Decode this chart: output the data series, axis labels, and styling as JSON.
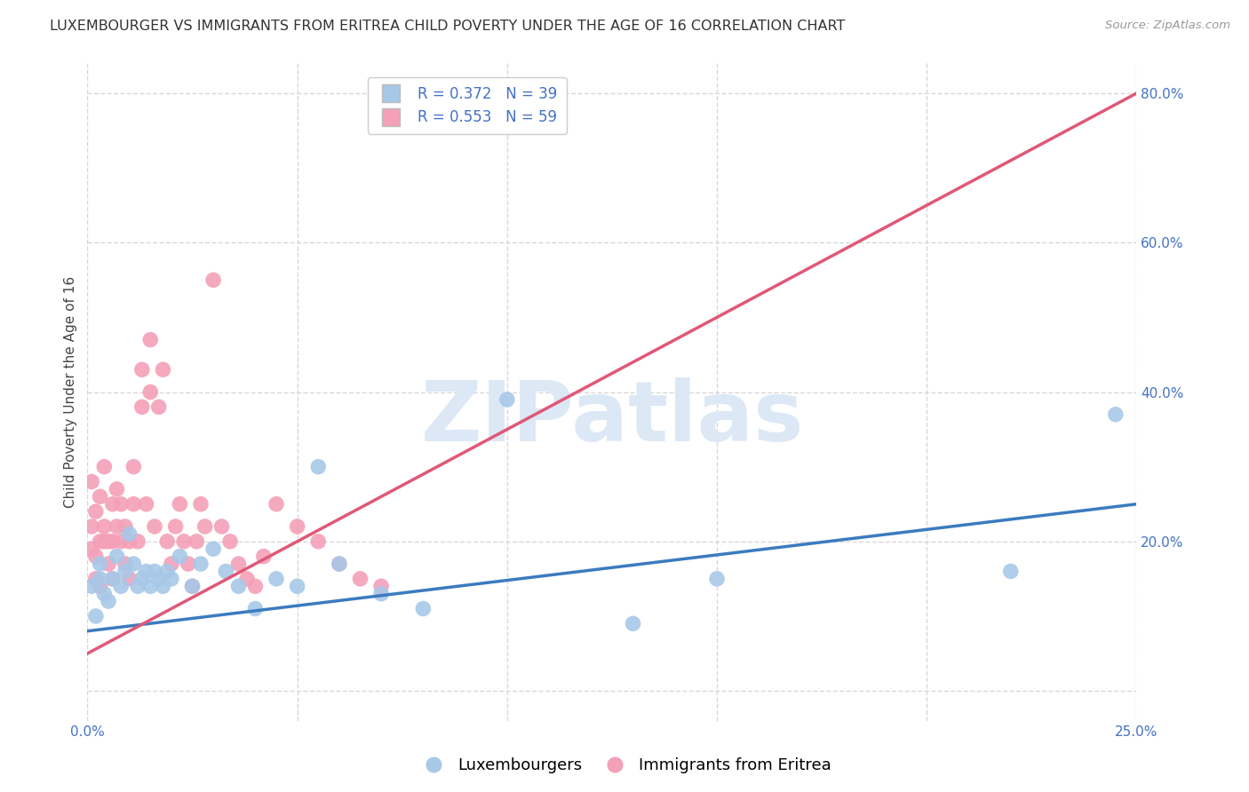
{
  "title": "LUXEMBOURGER VS IMMIGRANTS FROM ERITREA CHILD POVERTY UNDER THE AGE OF 16 CORRELATION CHART",
  "source": "Source: ZipAtlas.com",
  "ylabel": "Child Poverty Under the Age of 16",
  "xlim": [
    0.0,
    0.25
  ],
  "ylim": [
    -0.04,
    0.84
  ],
  "xticks": [
    0.0,
    0.05,
    0.1,
    0.15,
    0.2,
    0.25
  ],
  "xticklabels": [
    "0.0%",
    "",
    "",
    "",
    "",
    "25.0%"
  ],
  "yticks": [
    0.0,
    0.2,
    0.4,
    0.6,
    0.8
  ],
  "yticklabels": [
    "",
    "20.0%",
    "40.0%",
    "60.0%",
    "80.0%"
  ],
  "lux_color": "#a8c8e8",
  "eri_color": "#f4a0b8",
  "lux_line_color": "#3b7bbf",
  "eri_line_color": "#e05878",
  "lux_R": 0.372,
  "lux_N": 39,
  "eri_R": 0.553,
  "eri_N": 59,
  "watermark": "ZIPatlas",
  "watermark_color": "#dce8f5",
  "lux_scatter_x": [
    0.001,
    0.002,
    0.003,
    0.003,
    0.004,
    0.005,
    0.006,
    0.007,
    0.008,
    0.009,
    0.01,
    0.011,
    0.012,
    0.013,
    0.014,
    0.015,
    0.016,
    0.017,
    0.018,
    0.019,
    0.02,
    0.022,
    0.025,
    0.027,
    0.03,
    0.033,
    0.036,
    0.04,
    0.045,
    0.05,
    0.055,
    0.06,
    0.07,
    0.08,
    0.1,
    0.13,
    0.15,
    0.22,
    0.245
  ],
  "lux_scatter_y": [
    0.14,
    0.1,
    0.17,
    0.15,
    0.13,
    0.12,
    0.15,
    0.18,
    0.14,
    0.16,
    0.21,
    0.17,
    0.14,
    0.15,
    0.16,
    0.14,
    0.16,
    0.15,
    0.14,
    0.16,
    0.15,
    0.18,
    0.14,
    0.17,
    0.19,
    0.16,
    0.14,
    0.11,
    0.15,
    0.14,
    0.3,
    0.17,
    0.13,
    0.11,
    0.39,
    0.09,
    0.15,
    0.16,
    0.37
  ],
  "eri_scatter_x": [
    0.001,
    0.001,
    0.001,
    0.002,
    0.002,
    0.002,
    0.003,
    0.003,
    0.003,
    0.004,
    0.004,
    0.004,
    0.005,
    0.005,
    0.006,
    0.006,
    0.006,
    0.007,
    0.007,
    0.008,
    0.008,
    0.009,
    0.009,
    0.01,
    0.01,
    0.011,
    0.011,
    0.012,
    0.013,
    0.013,
    0.014,
    0.015,
    0.015,
    0.016,
    0.017,
    0.018,
    0.019,
    0.02,
    0.021,
    0.022,
    0.023,
    0.024,
    0.025,
    0.026,
    0.027,
    0.028,
    0.03,
    0.032,
    0.034,
    0.036,
    0.038,
    0.04,
    0.042,
    0.045,
    0.05,
    0.055,
    0.06,
    0.065,
    0.07
  ],
  "eri_scatter_y": [
    0.19,
    0.22,
    0.28,
    0.18,
    0.24,
    0.15,
    0.2,
    0.26,
    0.14,
    0.2,
    0.22,
    0.3,
    0.17,
    0.2,
    0.25,
    0.2,
    0.15,
    0.22,
    0.27,
    0.2,
    0.25,
    0.22,
    0.17,
    0.2,
    0.15,
    0.25,
    0.3,
    0.2,
    0.38,
    0.43,
    0.25,
    0.4,
    0.47,
    0.22,
    0.38,
    0.43,
    0.2,
    0.17,
    0.22,
    0.25,
    0.2,
    0.17,
    0.14,
    0.2,
    0.25,
    0.22,
    0.55,
    0.22,
    0.2,
    0.17,
    0.15,
    0.14,
    0.18,
    0.25,
    0.22,
    0.2,
    0.17,
    0.15,
    0.14
  ],
  "background_color": "#ffffff",
  "grid_color": "#d8d8d8",
  "axis_color": "#4472c4",
  "title_fontsize": 11.5,
  "label_fontsize": 11,
  "tick_fontsize": 11,
  "legend_fontsize": 12
}
